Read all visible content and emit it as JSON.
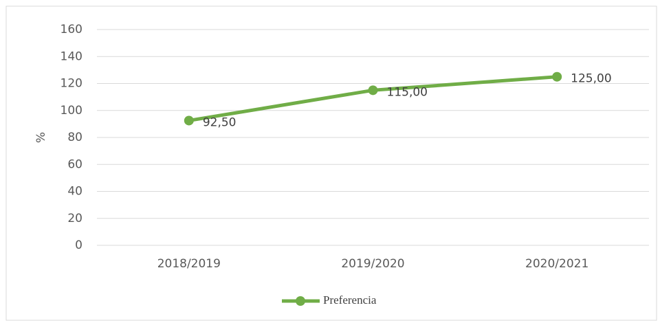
{
  "chart_data": {
    "type": "line",
    "y_label": "%",
    "categories": [
      "2018/2019",
      "2019/2020",
      "2020/2021"
    ],
    "series": [
      {
        "name": "Preferencia",
        "color": "#70ad47",
        "values": [
          92.5,
          115,
          125
        ],
        "value_labels": [
          "92,50",
          "115,00",
          "125,00"
        ]
      }
    ],
    "ylim": [
      0,
      160
    ],
    "yticks": [
      0,
      20,
      40,
      60,
      80,
      100,
      120,
      140,
      160
    ],
    "grid": true,
    "legend": "bottom"
  }
}
